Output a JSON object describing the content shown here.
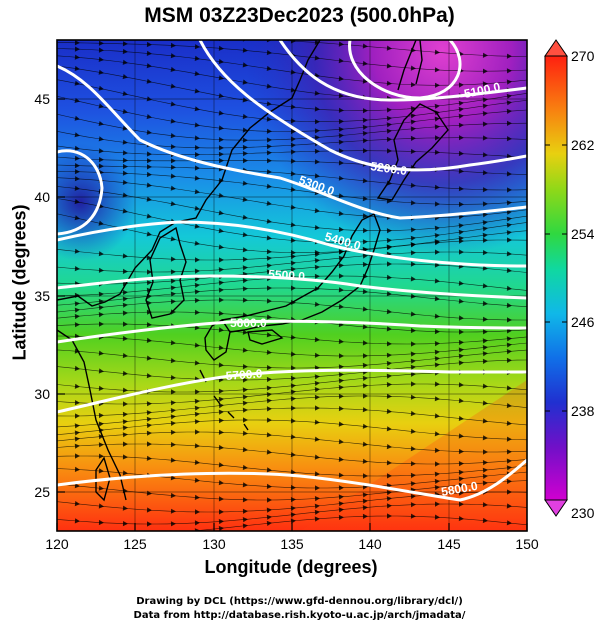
{
  "title": "MSM 03Z23Dec2023 (500.0hPa)",
  "xlabel": "Longitude (degrees)",
  "ylabel": "Latitude  (degrees)",
  "credit_line1": "Drawing by DCL (https://www.gfd-dennou.org/library/dcl/)",
  "credit_line2": "Data from http://database.rish.kyoto-u.ac.jp/arch/jmadata/",
  "map": {
    "lon_range": [
      120,
      150
    ],
    "lat_range": [
      22.5,
      47.5
    ],
    "x_ticks": [
      "120",
      "125",
      "130",
      "135",
      "140",
      "145",
      "150"
    ],
    "y_ticks": [
      "25",
      "30",
      "35",
      "40",
      "45"
    ],
    "colorbar_ticks": [
      "270",
      "262",
      "254",
      "246",
      "238",
      "230"
    ],
    "colorbar_range": [
      230,
      270
    ],
    "colors": {
      "cold": "#c000c0",
      "mid": "#00d0d0",
      "warm": "#ff3000"
    },
    "contours": [
      {
        "label": "5100.0"
      },
      {
        "label": "5200.0"
      },
      {
        "label": "5300.0"
      },
      {
        "label": "5400.0"
      },
      {
        "label": "5500.0"
      },
      {
        "label": "5600.0"
      },
      {
        "label": "5700.0"
      },
      {
        "label": "5800.0"
      }
    ]
  }
}
